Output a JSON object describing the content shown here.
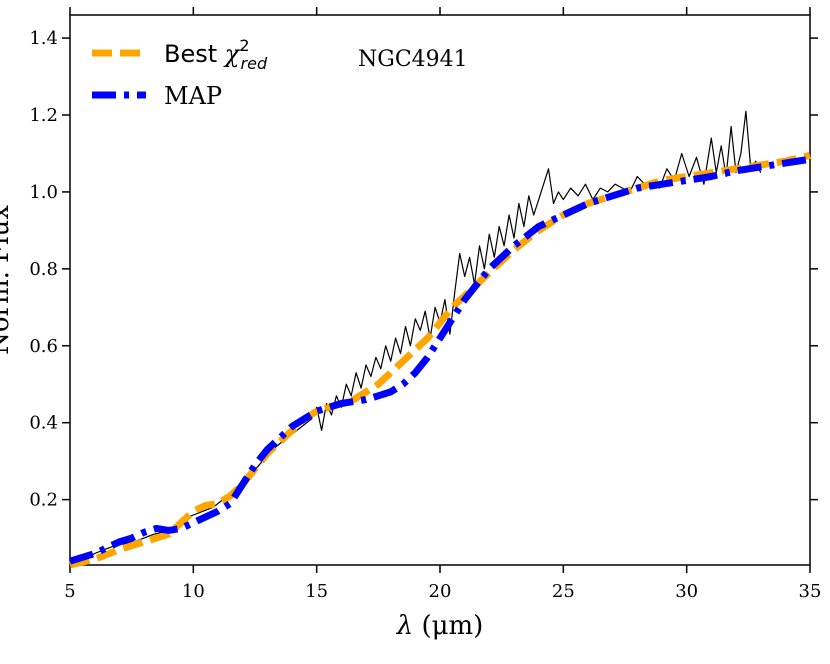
{
  "chart_data": {
    "type": "line",
    "title": "",
    "annotation": "NGC4941",
    "xlabel_symbol": "λ",
    "xlabel_unit": " (μm)",
    "ylabel": "Norm. Flux",
    "xlim": [
      5,
      35
    ],
    "ylim": [
      0.03,
      1.46
    ],
    "xticks": [
      5,
      10,
      15,
      20,
      25,
      30,
      35
    ],
    "yticks": [
      0.2,
      0.4,
      0.6,
      0.8,
      1.0,
      1.2,
      1.4
    ],
    "ytick_labels": [
      "0.2",
      "0.4",
      "0.6",
      "0.8",
      "1.0",
      "1.2",
      "1.4"
    ],
    "xtick_labels": [
      "5",
      "10",
      "15",
      "20",
      "25",
      "30",
      "35"
    ],
    "legend_position": "top-left",
    "legend": [
      {
        "label_text": "Best ",
        "label_math_base": "χ",
        "label_math_sup": "2",
        "label_math_sub": "red"
      },
      {
        "label_text": "MAP"
      }
    ],
    "series": [
      {
        "name": "Observed spectrum",
        "style": "solid-thin",
        "color": "#000000",
        "x": [
          5.2,
          5.6,
          6.0,
          6.4,
          6.8,
          7.2,
          7.6,
          8.0,
          8.4,
          8.8,
          9.2,
          9.6,
          10.0,
          10.4,
          10.8,
          11.2,
          11.6,
          12.0,
          12.4,
          12.8,
          13.2,
          13.6,
          14.0,
          14.4,
          14.8,
          15.0,
          15.2,
          15.4,
          15.6,
          15.8,
          16.0,
          16.2,
          16.4,
          16.6,
          16.8,
          17.0,
          17.2,
          17.4,
          17.6,
          17.8,
          18.0,
          18.2,
          18.4,
          18.6,
          18.8,
          19.0,
          19.2,
          19.4,
          19.6,
          19.8,
          20.0,
          20.2,
          20.4,
          20.6,
          20.8,
          21.0,
          21.2,
          21.4,
          21.6,
          21.8,
          22.0,
          22.2,
          22.4,
          22.6,
          22.8,
          23.0,
          23.2,
          23.4,
          23.6,
          23.8,
          24.0,
          24.2,
          24.4,
          24.6,
          24.8,
          25.0,
          25.3,
          25.6,
          25.9,
          26.2,
          26.5,
          26.8,
          27.1,
          27.4,
          27.7,
          28.0,
          28.3,
          28.6,
          28.9,
          29.2,
          29.5,
          29.8,
          30.1,
          30.4,
          30.7,
          31.0,
          31.2,
          31.4,
          31.6,
          31.8,
          32.0,
          32.2,
          32.4,
          32.6,
          32.8,
          33.0
        ],
        "y": [
          0.04,
          0.045,
          0.06,
          0.07,
          0.08,
          0.085,
          0.09,
          0.1,
          0.11,
          0.115,
          0.13,
          0.15,
          0.16,
          0.17,
          0.18,
          0.2,
          0.22,
          0.25,
          0.27,
          0.3,
          0.33,
          0.35,
          0.37,
          0.39,
          0.41,
          0.44,
          0.38,
          0.45,
          0.42,
          0.47,
          0.44,
          0.5,
          0.47,
          0.53,
          0.49,
          0.55,
          0.52,
          0.57,
          0.54,
          0.6,
          0.56,
          0.62,
          0.58,
          0.65,
          0.6,
          0.67,
          0.64,
          0.69,
          0.62,
          0.7,
          0.66,
          0.72,
          0.63,
          0.74,
          0.84,
          0.78,
          0.83,
          0.76,
          0.86,
          0.8,
          0.89,
          0.83,
          0.91,
          0.86,
          0.94,
          0.88,
          0.97,
          0.91,
          0.99,
          0.94,
          0.98,
          1.02,
          1.06,
          0.97,
          1.0,
          0.98,
          1.01,
          0.99,
          1.02,
          0.98,
          1.01,
          1.0,
          1.02,
          1.01,
          1.0,
          1.04,
          1.02,
          1.03,
          1.01,
          1.06,
          1.03,
          1.1,
          1.04,
          1.09,
          1.02,
          1.14,
          1.05,
          1.12,
          1.04,
          1.17,
          1.05,
          1.1,
          1.21,
          1.06,
          1.08,
          1.05
        ]
      },
      {
        "name": "Best χ²_red",
        "style": "dashed",
        "color": "#FFA500",
        "x": [
          5.0,
          6.0,
          7.0,
          8.0,
          9.0,
          9.5,
          10.0,
          10.5,
          11.0,
          11.5,
          12.0,
          12.5,
          13.0,
          13.5,
          14.0,
          14.5,
          15.0,
          15.5,
          16.0,
          16.5,
          17.0,
          17.5,
          18.0,
          18.5,
          19.0,
          19.5,
          20.0,
          20.5,
          21.0,
          21.5,
          22.0,
          23.0,
          24.0,
          25.0,
          26.0,
          27.0,
          28.0,
          29.0,
          30.0,
          31.0,
          32.0,
          33.0,
          34.0,
          35.0
        ],
        "y": [
          0.03,
          0.045,
          0.07,
          0.09,
          0.11,
          0.14,
          0.17,
          0.185,
          0.19,
          0.21,
          0.24,
          0.28,
          0.32,
          0.35,
          0.38,
          0.41,
          0.43,
          0.44,
          0.45,
          0.46,
          0.48,
          0.5,
          0.53,
          0.56,
          0.59,
          0.62,
          0.66,
          0.7,
          0.73,
          0.76,
          0.79,
          0.85,
          0.9,
          0.94,
          0.97,
          0.99,
          1.01,
          1.03,
          1.04,
          1.05,
          1.06,
          1.07,
          1.08,
          1.095
        ]
      },
      {
        "name": "MAP",
        "style": "dash-dot",
        "color": "#0000FF",
        "x": [
          5.0,
          6.0,
          7.0,
          7.5,
          8.0,
          8.5,
          9.0,
          9.5,
          10.0,
          10.5,
          11.0,
          11.5,
          12.0,
          12.5,
          13.0,
          13.5,
          14.0,
          14.5,
          15.0,
          15.5,
          16.0,
          16.5,
          17.0,
          17.5,
          18.0,
          18.5,
          19.0,
          19.5,
          20.0,
          20.5,
          21.0,
          21.5,
          22.0,
          23.0,
          24.0,
          25.0,
          26.0,
          27.0,
          28.0,
          29.0,
          30.0,
          31.0,
          32.0,
          33.0,
          34.0,
          35.0
        ],
        "y": [
          0.04,
          0.06,
          0.09,
          0.1,
          0.115,
          0.125,
          0.12,
          0.125,
          0.14,
          0.155,
          0.17,
          0.19,
          0.24,
          0.29,
          0.33,
          0.36,
          0.39,
          0.41,
          0.43,
          0.44,
          0.45,
          0.455,
          0.46,
          0.47,
          0.48,
          0.5,
          0.53,
          0.57,
          0.62,
          0.67,
          0.72,
          0.76,
          0.8,
          0.86,
          0.91,
          0.94,
          0.97,
          0.99,
          1.01,
          1.02,
          1.03,
          1.04,
          1.055,
          1.065,
          1.075,
          1.085
        ]
      }
    ]
  }
}
